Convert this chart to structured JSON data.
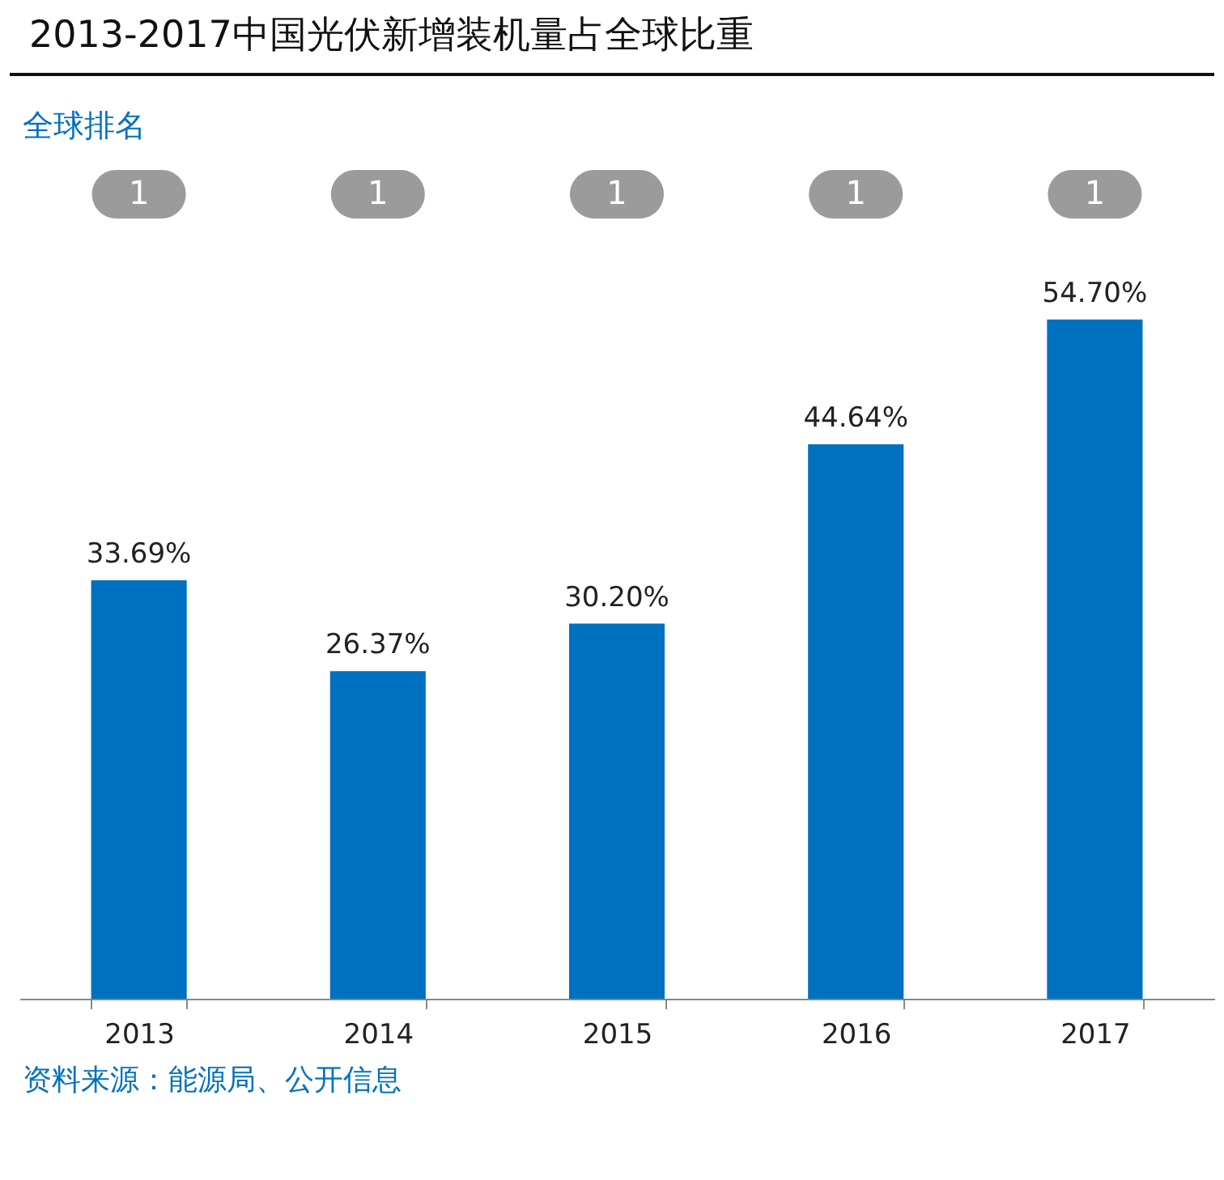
{
  "chart_data": {
    "type": "bar",
    "title": "2013-2017中国光伏新增装机量占全球比重",
    "subtitle": "全球排名",
    "categories": [
      "2013",
      "2014",
      "2015",
      "2016",
      "2017"
    ],
    "values": [
      33.69,
      26.37,
      30.2,
      44.64,
      54.7
    ],
    "value_labels": [
      "33.69%",
      "26.37%",
      "30.20%",
      "44.64%",
      "54.70%"
    ],
    "color": "#0070c0",
    "annotations": [
      "1",
      "1",
      "1",
      "1",
      "1",
      "资料来源：能源局、公开信息"
    ]
  }
}
